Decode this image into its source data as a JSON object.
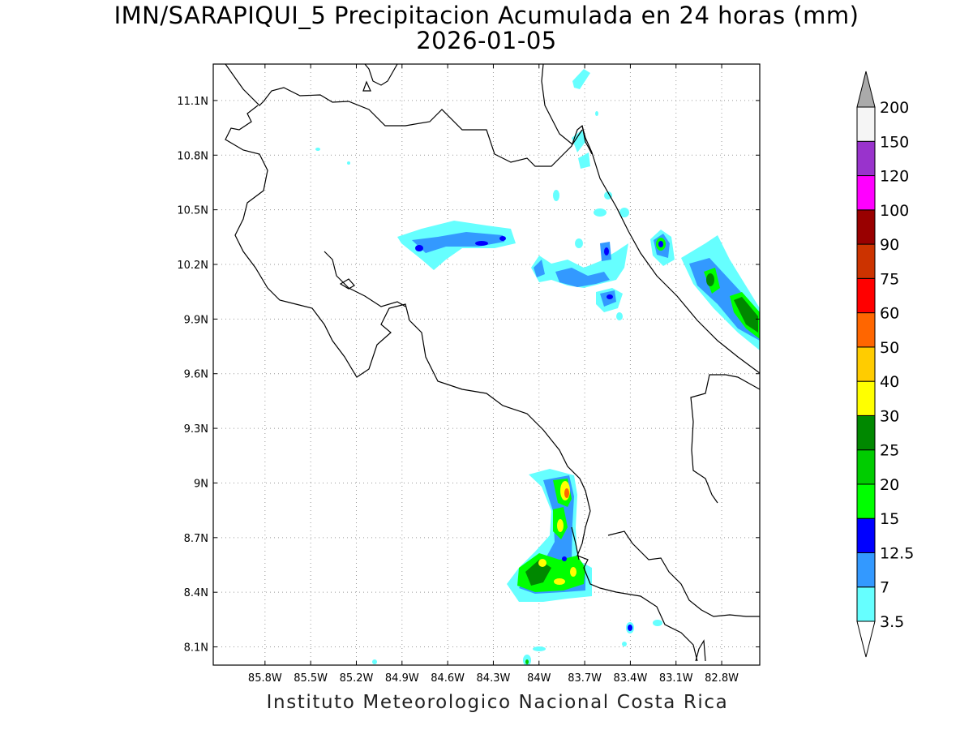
{
  "title_line1": "IMN/SARAPIQUI_5 Precipitacion Acumulada en 24 horas (mm)",
  "title_line2": "2026-01-05",
  "footer": "Instituto Meteorologico Nacional Costa Rica",
  "map": {
    "lon_range": [
      -86.14,
      -82.55
    ],
    "lat_range": [
      8.0,
      11.3
    ],
    "lon_ticks": [
      {
        "value": -85.8,
        "label": "85.8W"
      },
      {
        "value": -85.5,
        "label": "85.5W"
      },
      {
        "value": -85.2,
        "label": "85.2W"
      },
      {
        "value": -84.9,
        "label": "84.9W"
      },
      {
        "value": -84.6,
        "label": "84.6W"
      },
      {
        "value": -84.3,
        "label": "84.3W"
      },
      {
        "value": -84.0,
        "label": "84W"
      },
      {
        "value": -83.7,
        "label": "83.7W"
      },
      {
        "value": -83.4,
        "label": "83.4W"
      },
      {
        "value": -83.1,
        "label": "83.1W"
      },
      {
        "value": -82.8,
        "label": "82.8W"
      }
    ],
    "lat_ticks": [
      {
        "value": 11.1,
        "label": "11.1N"
      },
      {
        "value": 10.8,
        "label": "10.8N"
      },
      {
        "value": 10.5,
        "label": "10.5N"
      },
      {
        "value": 10.2,
        "label": "10.2N"
      },
      {
        "value": 9.9,
        "label": "9.9N"
      },
      {
        "value": 9.6,
        "label": "9.6N"
      },
      {
        "value": 9.3,
        "label": "9.3N"
      },
      {
        "value": 9.0,
        "label": "9N"
      },
      {
        "value": 8.7,
        "label": "8.7N"
      },
      {
        "value": 8.4,
        "label": "8.4N"
      },
      {
        "value": 8.1,
        "label": "8.1N"
      }
    ],
    "grid": true
  },
  "colorbar": {
    "levels": [
      "3.5",
      "7",
      "12.5",
      "15",
      "20",
      "25",
      "30",
      "40",
      "50",
      "60",
      "75",
      "90",
      "100",
      "120",
      "150",
      "200"
    ],
    "colors": [
      "#66ffff",
      "#3399ff",
      "#0000ff",
      "#00ff00",
      "#00cc00",
      "#008800",
      "#ffff00",
      "#ffcc00",
      "#ff6600",
      "#ff0000",
      "#cc3300",
      "#990000",
      "#ff00ff",
      "#9933cc",
      "#f5f5f5"
    ],
    "over_color": "#aaaaaa",
    "under_color": "#ffffff"
  }
}
